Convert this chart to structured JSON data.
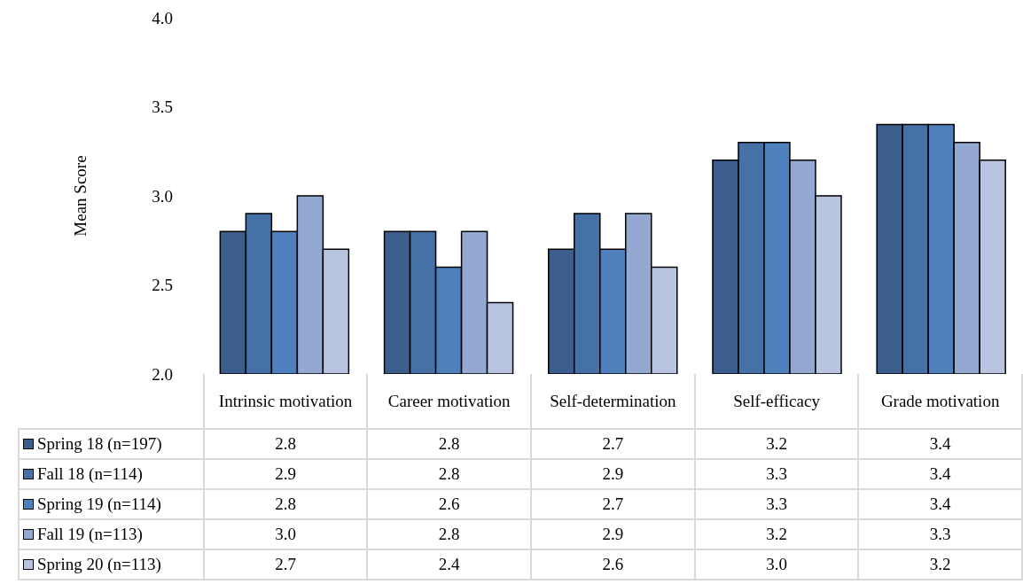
{
  "chart_data": {
    "type": "bar",
    "ylabel": "Mean Score",
    "categories": [
      "Intrinsic motivation",
      "Career motivation",
      "Self-determination",
      "Self-efficacy",
      "Grade motivation"
    ],
    "series": [
      {
        "name": "Spring 18 (n=197)",
        "color": "#3b5e8c",
        "values": [
          2.8,
          2.8,
          2.7,
          3.2,
          3.4
        ],
        "value_labels": [
          "2.8",
          "2.8",
          "2.7",
          "3.2",
          "3.4"
        ]
      },
      {
        "name": "Fall 18 (n=114)",
        "color": "#4571a6",
        "values": [
          2.9,
          2.8,
          2.9,
          3.3,
          3.4
        ],
        "value_labels": [
          "2.9",
          "2.8",
          "2.9",
          "3.3",
          "3.4"
        ]
      },
      {
        "name": "Spring 19 (n=114)",
        "color": "#4d80bd",
        "values": [
          2.8,
          2.6,
          2.7,
          3.3,
          3.4
        ],
        "value_labels": [
          "2.8",
          "2.6",
          "2.7",
          "3.3",
          "3.4"
        ]
      },
      {
        "name": "Fall 19 (n=113)",
        "color": "#94a9d2",
        "values": [
          3.0,
          2.8,
          2.9,
          3.2,
          3.3
        ],
        "value_labels": [
          "3.0",
          "2.8",
          "2.9",
          "3.2",
          "3.3"
        ]
      },
      {
        "name": "Spring 20 (n=113)",
        "color": "#b9c5e0",
        "values": [
          2.7,
          2.4,
          2.6,
          3.0,
          3.2
        ],
        "value_labels": [
          "2.7",
          "2.4",
          "2.6",
          "3.0",
          "3.2"
        ]
      }
    ],
    "ylim": [
      2,
      4
    ],
    "yticks": [
      {
        "value": 2,
        "label": "2.0"
      },
      {
        "value": 2.5,
        "label": "2.5"
      },
      {
        "value": 3,
        "label": "3.0"
      },
      {
        "value": 3.5,
        "label": "3.5"
      },
      {
        "value": 4,
        "label": "4.0"
      }
    ],
    "legend": "bottom"
  }
}
